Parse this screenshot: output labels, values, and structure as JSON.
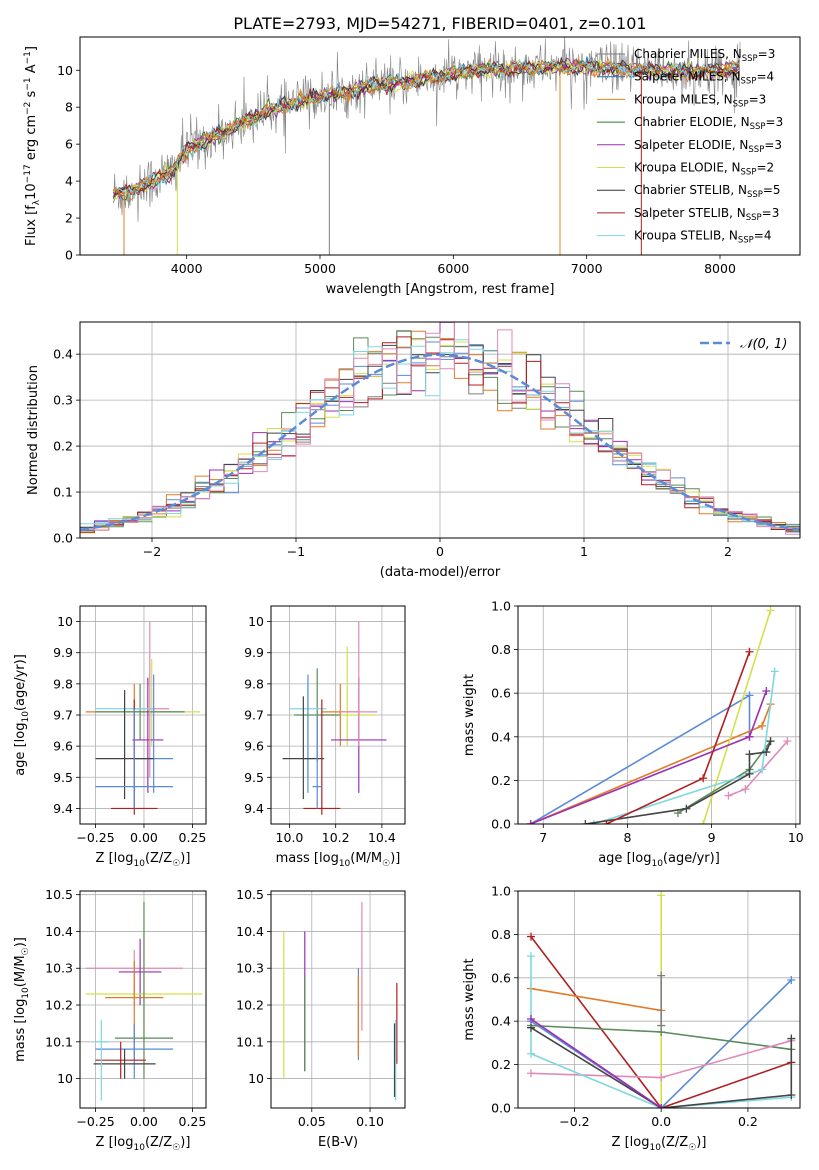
{
  "figure": {
    "title": "PLATE=2793, MJD=54271, FIBERID=0401, z=0.101"
  },
  "chart_data": [
    {
      "id": "spectrum",
      "type": "line",
      "title": "PLATE=2793, MJD=54271, FIBERID=0401, z=0.101",
      "xlabel": "wavelength [Angstrom, rest frame]",
      "ylabel": "Flux [f_λ10^-17 erg cm^-2 s^-1 A^-1]",
      "xlim": [
        3200,
        8600
      ],
      "ylim": [
        0,
        11.8
      ],
      "xticks": [
        4000,
        5000,
        6000,
        7000,
        8000
      ],
      "yticks": [
        0,
        2,
        4,
        6,
        8,
        10
      ],
      "grid": false,
      "legend": "top-right",
      "continuum": {
        "x": [
          3450,
          3600,
          3800,
          3900,
          4000,
          4200,
          4400,
          4600,
          4800,
          5000,
          5200,
          5400,
          5600,
          5800,
          6000,
          6200,
          6400,
          6600,
          6800,
          7000,
          7200,
          7400,
          7600,
          7800,
          8000,
          8150
        ],
        "y": [
          3.3,
          3.5,
          4.2,
          4.6,
          5.7,
          6.4,
          7.1,
          7.8,
          8.2,
          8.6,
          8.8,
          9.2,
          9.3,
          9.6,
          9.8,
          10.0,
          10.1,
          10.15,
          10.2,
          10.2,
          10.1,
          10.0,
          9.95,
          9.9,
          10.0,
          10.15
        ]
      },
      "series": [
        {
          "name": "Chabrier MILES, N_SSP=3",
          "color": "#7f7f7f"
        },
        {
          "name": "Salpeter MILES, N_SSP=4",
          "color": "#1f77b4"
        },
        {
          "name": "Kroupa MILES, N_SSP=3",
          "color": "#d98a1a"
        },
        {
          "name": "Chabrier ELODIE, N_SSP=3",
          "color": "#2c7c2c"
        },
        {
          "name": "Salpeter ELODIE, N_SSP=3",
          "color": "#9b2fb5"
        },
        {
          "name": "Kroupa ELODIE, N_SSP=2",
          "color": "#d4e04a"
        },
        {
          "name": "Chabrier STELIB, N_SSP=5",
          "color": "#333333"
        },
        {
          "name": "Salpeter STELIB, N_SSP=3",
          "color": "#b02020"
        },
        {
          "name": "Kroupa STELIB, N_SSP=4",
          "color": "#7fd8e0"
        }
      ],
      "legend_entries": [
        {
          "base": "Chabrier MILES, N",
          "sub": "SSP",
          "tail": "=3",
          "color": "#7f7f7f"
        },
        {
          "base": "Salpeter MILES, N",
          "sub": "SSP",
          "tail": "=4",
          "color": "#1f77b4"
        },
        {
          "base": "Kroupa MILES, N",
          "sub": "SSP",
          "tail": "=3",
          "color": "#d98a1a"
        },
        {
          "base": "Chabrier ELODIE, N",
          "sub": "SSP",
          "tail": "=3",
          "color": "#2c7c2c"
        },
        {
          "base": "Salpeter ELODIE, N",
          "sub": "SSP",
          "tail": "=3",
          "color": "#9b2fb5"
        },
        {
          "base": "Kroupa ELODIE, N",
          "sub": "SSP",
          "tail": "=2",
          "color": "#d4e04a"
        },
        {
          "base": "Chabrier STELIB, N",
          "sub": "SSP",
          "tail": "=5",
          "color": "#333333"
        },
        {
          "base": "Salpeter STELIB, N",
          "sub": "SSP",
          "tail": "=3",
          "color": "#b02020"
        },
        {
          "base": "Kroupa STELIB, N",
          "sub": "SSP",
          "tail": "=4",
          "color": "#7fd8e0"
        }
      ]
    },
    {
      "id": "residuals",
      "type": "bar",
      "xlabel": "(data-model)/error",
      "ylabel": "Normed distribution",
      "xlim": [
        -2.5,
        2.5
      ],
      "ylim": [
        0,
        0.47
      ],
      "xticks": [
        -2,
        -1,
        0,
        1,
        2
      ],
      "xtick_labels": [
        "−2",
        "−1",
        "0",
        "1",
        "2"
      ],
      "yticks": [
        0.0,
        0.1,
        0.2,
        0.3,
        0.4
      ],
      "ytick_labels": [
        "0.0",
        "0.1",
        "0.2",
        "0.3",
        "0.4"
      ],
      "grid": true,
      "legend": "top-right",
      "gaussian_label": "𝒩(0, 1)",
      "gaussian_color": "#5b8bd8",
      "bin_width": 0.1,
      "histogram_colors": [
        "#7f7f7f",
        "#5b8bd8",
        "#e07b2a",
        "#5a8a5a",
        "#9b2fb5",
        "#d4e04a",
        "#444444",
        "#b02020",
        "#7fd8e0",
        "#e08ab8"
      ]
    },
    {
      "id": "age-vs-Z",
      "type": "scatter",
      "xlabel": "Z [log10(Z/Z☉)]",
      "ylabel": "age  [log10(age/yr)]",
      "xlim": [
        -0.33,
        0.32
      ],
      "ylim": [
        9.35,
        10.05
      ],
      "xticks": [
        -0.25,
        0.0,
        0.25
      ],
      "xtick_labels": [
        "−0.25",
        "0.00",
        "0.25"
      ],
      "yticks": [
        9.4,
        9.5,
        9.6,
        9.7,
        9.8,
        9.9,
        10.0
      ],
      "grid": true,
      "points": [
        {
          "x": -0.05,
          "y": 9.71,
          "xerr": 0.25,
          "yerr": [
            9.6,
            9.8
          ],
          "color": "#e07b2a"
        },
        {
          "x": 0.04,
          "y": 9.71,
          "xerr": 0.25,
          "yerr": [
            9.6,
            9.88
          ],
          "color": "#d4e04a"
        },
        {
          "x": -0.02,
          "y": 9.71,
          "xerr": 0.23,
          "yerr": [
            9.62,
            9.8
          ],
          "color": "#5a8a5a"
        },
        {
          "x": 0.02,
          "y": 9.62,
          "xerr": 0.08,
          "yerr": [
            9.45,
            9.82
          ],
          "color": "#9b2fb5"
        },
        {
          "x": 0.03,
          "y": 9.72,
          "xerr": 0.1,
          "yerr": [
            9.5,
            10.0
          ],
          "color": "#e08ab8"
        },
        {
          "x": -0.1,
          "y": 9.72,
          "xerr": 0.15,
          "yerr": [
            9.55,
            9.78
          ],
          "color": "#7fd8e0"
        },
        {
          "x": 0.05,
          "y": 9.56,
          "xerr": 0.1,
          "yerr": [
            9.45,
            9.83
          ],
          "color": "#5b8bd8"
        },
        {
          "x": -0.1,
          "y": 9.56,
          "xerr": 0.15,
          "yerr": [
            9.43,
            9.78
          ],
          "color": "#444444"
        },
        {
          "x": -0.05,
          "y": 9.4,
          "xerr": 0.12,
          "yerr": [
            9.38,
            9.75
          ],
          "color": "#b02020"
        },
        {
          "x": -0.05,
          "y": 9.47,
          "xerr": 0.2,
          "yerr": [
            9.4,
            9.72
          ],
          "color": "#5b8bd8"
        }
      ]
    },
    {
      "id": "age-vs-mass",
      "type": "scatter",
      "xlabel": "mass [log10(M/M☉)]",
      "ylabel": "",
      "xlim": [
        9.92,
        10.5
      ],
      "ylim": [
        9.35,
        10.05
      ],
      "xticks": [
        10.0,
        10.2,
        10.4
      ],
      "xtick_labels": [
        "10.0",
        "10.2",
        "10.4"
      ],
      "yticks": [
        9.4,
        9.5,
        9.6,
        9.7,
        9.8,
        9.9,
        10.0
      ],
      "grid": true,
      "points": [
        {
          "x": 10.22,
          "y": 9.71,
          "xerr": 0.08,
          "yerr": [
            9.6,
            9.8
          ],
          "color": "#e07b2a"
        },
        {
          "x": 10.25,
          "y": 9.7,
          "xerr": 0.12,
          "yerr": [
            9.6,
            9.92
          ],
          "color": "#d4e04a"
        },
        {
          "x": 10.12,
          "y": 9.7,
          "xerr": 0.1,
          "yerr": [
            9.55,
            9.85
          ],
          "color": "#5a8a5a"
        },
        {
          "x": 10.3,
          "y": 9.62,
          "xerr": 0.12,
          "yerr": [
            9.45,
            9.82
          ],
          "color": "#9b2fb5"
        },
        {
          "x": 10.3,
          "y": 9.71,
          "xerr": 0.08,
          "yerr": [
            9.6,
            10.0
          ],
          "color": "#e08ab8"
        },
        {
          "x": 10.08,
          "y": 9.72,
          "xerr": 0.08,
          "yerr": [
            9.5,
            9.8
          ],
          "color": "#7fd8e0"
        },
        {
          "x": 10.08,
          "y": 9.56,
          "xerr": 0.02,
          "yerr": [
            9.45,
            9.83
          ],
          "color": "#5b8bd8"
        },
        {
          "x": 10.06,
          "y": 9.56,
          "xerr": 0.09,
          "yerr": [
            9.43,
            9.76
          ],
          "color": "#444444"
        },
        {
          "x": 10.14,
          "y": 9.4,
          "xerr": 0.08,
          "yerr": [
            9.38,
            9.75
          ],
          "color": "#b02020"
        },
        {
          "x": 10.12,
          "y": 9.47,
          "xerr": 0.02,
          "yerr": [
            9.4,
            9.7
          ],
          "color": "#5b8bd8"
        }
      ]
    },
    {
      "id": "weight-vs-age",
      "type": "line",
      "xlabel": "age  [log10(age/yr)]",
      "ylabel": "mass weight",
      "xlim": [
        6.7,
        10.05
      ],
      "ylim": [
        0,
        1
      ],
      "xticks": [
        7,
        8,
        9,
        10
      ],
      "yticks": [
        0.0,
        0.2,
        0.4,
        0.6,
        0.8,
        1.0
      ],
      "ytick_labels": [
        "0.0",
        "0.2",
        "0.4",
        "0.6",
        "0.8",
        "1.0"
      ],
      "grid": true,
      "series": [
        {
          "color": "#5b8bd8",
          "x": [
            6.85,
            9.45,
            9.45
          ],
          "y": [
            0.0,
            0.59,
            0.4
          ]
        },
        {
          "color": "#e07b2a",
          "x": [
            6.85,
            9.6,
            9.7
          ],
          "y": [
            0.0,
            0.45,
            0.55
          ]
        },
        {
          "color": "#d4e04a",
          "x": [
            8.9,
            9.7
          ],
          "y": [
            0.0,
            0.98
          ]
        },
        {
          "color": "#5a8a5a",
          "x": [
            8.6,
            9.45,
            9.7
          ],
          "y": [
            0.05,
            0.25,
            0.38
          ]
        },
        {
          "color": "#9b2fb5",
          "x": [
            6.85,
            9.45,
            9.65
          ],
          "y": [
            0.0,
            0.4,
            0.61
          ]
        },
        {
          "color": "#e08ab8",
          "x": [
            9.2,
            9.4,
            9.9
          ],
          "y": [
            0.13,
            0.16,
            0.38
          ]
        },
        {
          "color": "#7fd8e0",
          "x": [
            7.6,
            9.45,
            9.6,
            9.75
          ],
          "y": [
            0.0,
            0.23,
            0.25,
            0.7
          ]
        },
        {
          "color": "#444444",
          "x": [
            7.5,
            8.7,
            9.45,
            9.45,
            9.65,
            9.7
          ],
          "y": [
            0.0,
            0.07,
            0.23,
            0.32,
            0.33,
            0.38
          ]
        },
        {
          "color": "#b02020",
          "x": [
            7.75,
            8.9,
            9.45
          ],
          "y": [
            0.0,
            0.21,
            0.79
          ]
        }
      ]
    },
    {
      "id": "mass-vs-Z",
      "type": "scatter",
      "xlabel": "Z [log10(Z/Z☉)]",
      "ylabel": "mass [log10(M/M☉)]",
      "xlim": [
        -0.33,
        0.32
      ],
      "ylim": [
        9.92,
        10.51
      ],
      "xticks": [
        -0.25,
        0.0,
        0.25
      ],
      "xtick_labels": [
        "−0.25",
        "0.00",
        "0.25"
      ],
      "yticks": [
        10.0,
        10.1,
        10.2,
        10.3,
        10.4,
        10.5
      ],
      "grid": true,
      "points": [
        {
          "x": -0.05,
          "y": 10.3,
          "xerr": 0.25,
          "yerr": [
            10.2,
            10.35
          ],
          "color": "#e08ab8"
        },
        {
          "x": -0.02,
          "y": 10.29,
          "xerr": 0.11,
          "yerr": [
            10.2,
            10.38
          ],
          "color": "#9b2fb5"
        },
        {
          "x": 0.0,
          "y": 10.23,
          "xerr": 0.3,
          "yerr": [
            10.1,
            10.4
          ],
          "color": "#d4e04a"
        },
        {
          "x": -0.05,
          "y": 10.22,
          "xerr": 0.15,
          "yerr": [
            10.05,
            10.32
          ],
          "color": "#e07b2a"
        },
        {
          "x": 0.0,
          "y": 10.11,
          "xerr": 0.15,
          "yerr": [
            10.0,
            10.48
          ],
          "color": "#5a8a5a"
        },
        {
          "x": -0.05,
          "y": 10.08,
          "xerr": 0.2,
          "yerr": [
            10.0,
            10.15
          ],
          "color": "#5b8bd8"
        },
        {
          "x": -0.12,
          "y": 10.05,
          "xerr": 0.13,
          "yerr": [
            10.0,
            10.1
          ],
          "color": "#b02020"
        },
        {
          "x": -0.1,
          "y": 10.04,
          "xerr": 0.16,
          "yerr": [
            10.0,
            10.08
          ],
          "color": "#444444"
        },
        {
          "x": -0.22,
          "y": 10.1,
          "xerr": 0.04,
          "yerr": [
            9.94,
            10.16
          ],
          "color": "#7fd8e0"
        }
      ]
    },
    {
      "id": "mass-vs-EBV",
      "type": "scatter",
      "xlabel": "E(B-V)",
      "ylabel": "",
      "xlim": [
        0.015,
        0.13
      ],
      "ylim": [
        9.92,
        10.51
      ],
      "xticks": [
        0.05,
        0.1
      ],
      "xtick_labels": [
        "0.05",
        "0.10"
      ],
      "yticks": [
        10.0,
        10.1,
        10.2,
        10.3,
        10.4,
        10.5
      ],
      "grid": true,
      "points": [
        {
          "x": 0.026,
          "y": 10.2,
          "yerr": [
            10.0,
            10.4
          ],
          "color": "#d4e04a"
        },
        {
          "x": 0.044,
          "y": 10.2,
          "yerr": [
            10.02,
            10.4
          ],
          "color": "#9b2fb5"
        },
        {
          "x": 0.044,
          "y": 10.15,
          "yerr": [
            10.02,
            10.28
          ],
          "color": "#5a8a5a"
        },
        {
          "x": 0.09,
          "y": 10.18,
          "yerr": [
            10.05,
            10.3
          ],
          "color": "#5b8bd8"
        },
        {
          "x": 0.09,
          "y": 10.17,
          "yerr": [
            10.06,
            10.28
          ],
          "color": "#e07b2a"
        },
        {
          "x": 0.093,
          "y": 10.3,
          "yerr": [
            10.13,
            10.48
          ],
          "color": "#e08ab8"
        },
        {
          "x": 0.123,
          "y": 10.15,
          "yerr": [
            10.04,
            10.26
          ],
          "color": "#b02020"
        },
        {
          "x": 0.122,
          "y": 10.05,
          "yerr": [
            9.94,
            10.16
          ],
          "color": "#7fd8e0"
        },
        {
          "x": 0.121,
          "y": 10.05,
          "yerr": [
            9.95,
            10.15
          ],
          "color": "#444444"
        }
      ]
    },
    {
      "id": "weight-vs-Z",
      "type": "line",
      "xlabel": "Z [log10(Z/Z☉)]",
      "ylabel": "mass weight",
      "xlim": [
        -0.33,
        0.32
      ],
      "ylim": [
        0,
        1
      ],
      "xticks": [
        -0.2,
        0.0,
        0.2
      ],
      "xtick_labels": [
        "−0.2",
        "0.0",
        "0.2"
      ],
      "yticks": [
        0.0,
        0.2,
        0.4,
        0.6,
        0.8,
        1.0
      ],
      "ytick_labels": [
        "0.0",
        "0.2",
        "0.4",
        "0.6",
        "0.8",
        "1.0"
      ],
      "grid": true,
      "series": [
        {
          "color": "#d4e04a",
          "x": [
            0.0,
            0.0
          ],
          "y": [
            0.0,
            0.98
          ]
        },
        {
          "color": "#b02020",
          "x": [
            -0.3,
            0.0,
            0.3
          ],
          "y": [
            0.79,
            0.0,
            0.21
          ]
        },
        {
          "color": "#e07b2a",
          "x": [
            -0.3,
            0.0
          ],
          "y": [
            0.55,
            0.45
          ]
        },
        {
          "color": "#5b8bd8",
          "x": [
            -0.3,
            0.0,
            0.3
          ],
          "y": [
            0.4,
            0.0,
            0.59
          ]
        },
        {
          "color": "#5a8a5a",
          "x": [
            -0.3,
            0.0,
            0.3
          ],
          "y": [
            0.38,
            0.35,
            0.27
          ]
        },
        {
          "color": "#e08ab8",
          "x": [
            -0.3,
            0.0,
            0.3
          ],
          "y": [
            0.16,
            0.14,
            0.31
          ]
        },
        {
          "color": "#7fd8e0",
          "x": [
            -0.3,
            -0.3,
            0.0,
            0.3
          ],
          "y": [
            0.7,
            0.25,
            0.0,
            0.05
          ]
        },
        {
          "color": "#444444",
          "x": [
            -0.3,
            0.0,
            0.3,
            0.3
          ],
          "y": [
            0.37,
            0.0,
            0.06,
            0.32
          ]
        },
        {
          "color": "#9b2fb5",
          "x": [
            -0.3,
            0.0
          ],
          "y": [
            0.41,
            0.0
          ]
        },
        {
          "color": "#7f7f7f",
          "x": [
            0.0,
            0.0
          ],
          "y": [
            0.38,
            0.61
          ]
        }
      ]
    }
  ]
}
